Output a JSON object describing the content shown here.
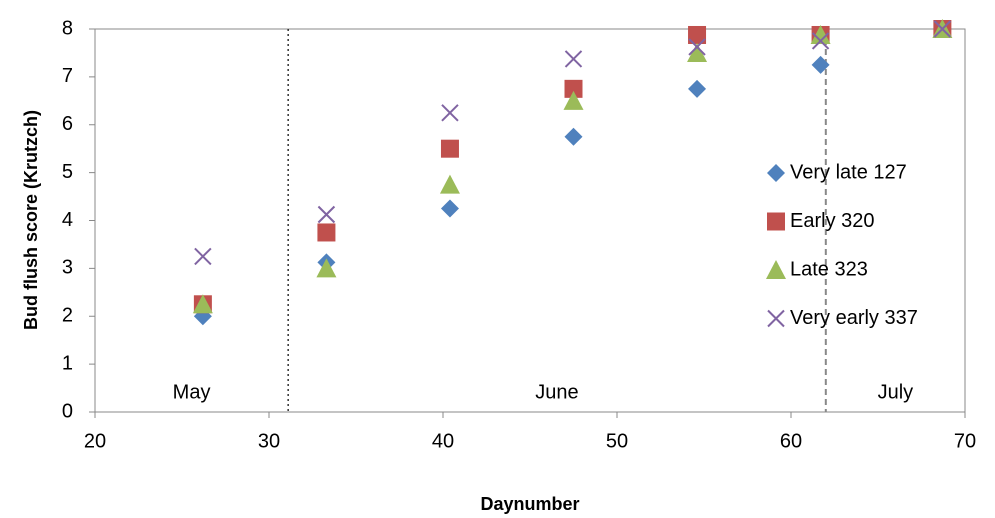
{
  "chart_data": {
    "type": "scatter",
    "xlabel": "Daynumber",
    "ylabel": "Bud  flush score (Krutzch)",
    "x": [
      26.2,
      33.3,
      40.4,
      47.5,
      54.6,
      61.7,
      68.7
    ],
    "series": [
      {
        "name": "Very late 127",
        "color": "#4f81bd",
        "marker": "diamond",
        "values": [
          2.0,
          3.125,
          4.25,
          5.75,
          6.75,
          7.25,
          8.0
        ]
      },
      {
        "name": "Early 320",
        "color": "#c0504d",
        "marker": "square",
        "values": [
          2.25,
          3.75,
          5.5,
          6.75,
          7.875,
          7.875,
          8.0
        ]
      },
      {
        "name": "Late 323",
        "color": "#9bbb59",
        "marker": "triangle",
        "values": [
          2.25,
          3.0,
          4.75,
          6.5,
          7.5,
          7.875,
          8.0
        ]
      },
      {
        "name": "Very early 337",
        "color": "#8064a2",
        "marker": "x",
        "values": [
          3.25,
          4.125,
          6.25,
          7.375,
          7.625,
          7.75,
          8.0
        ]
      }
    ],
    "xlim": [
      20,
      70
    ],
    "xticks": [
      20,
      30,
      40,
      50,
      60,
      70
    ],
    "ylim": [
      0,
      8
    ],
    "yticks": [
      0,
      1,
      2,
      3,
      4,
      5,
      6,
      7,
      8
    ],
    "months": [
      "May",
      "June",
      "July"
    ],
    "month_boundaries": [
      31.1,
      62.0
    ],
    "grid": false,
    "legend": "right"
  }
}
